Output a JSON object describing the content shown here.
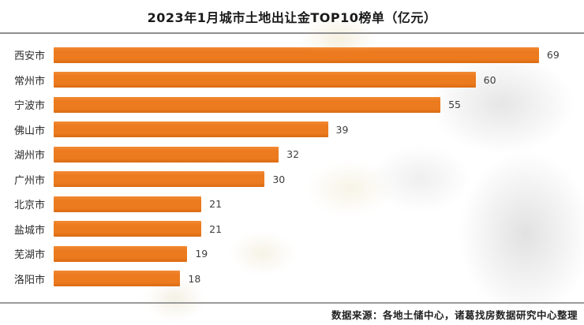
{
  "title": "2023年1月城市土地出让金TOP10榜单（亿元）",
  "source_note": "数据来源：各地土储中心，诸葛找房数据研究中心整理",
  "colors": {
    "bar": "#EC7A1E",
    "bar_top": "#F18A33",
    "bar_bottom": "#D96A12",
    "divider": "#8F8F8F",
    "title_text": "#1A1A1A",
    "label_text": "#2B2B2B",
    "value_text": "#3D3D3D",
    "source_text": "#222222",
    "bg": "#FFFFFF"
  },
  "chart_data": {
    "type": "bar",
    "orientation": "horizontal",
    "title": "2023年1月城市土地出让金TOP10榜单（亿元）",
    "unit": "亿元",
    "categories": [
      "西安市",
      "常州市",
      "宁波市",
      "佛山市",
      "湖州市",
      "广州市",
      "北京市",
      "盐城市",
      "芜湖市",
      "洛阳市"
    ],
    "values": [
      69,
      60,
      55,
      39,
      32,
      30,
      21,
      21,
      19,
      18
    ],
    "xlabel": "",
    "ylabel": "",
    "xlim": [
      0,
      75
    ],
    "value_labels": true,
    "sort": "descending",
    "grid": false,
    "legend": false,
    "max_bar_fraction_of_track": 0.915
  }
}
